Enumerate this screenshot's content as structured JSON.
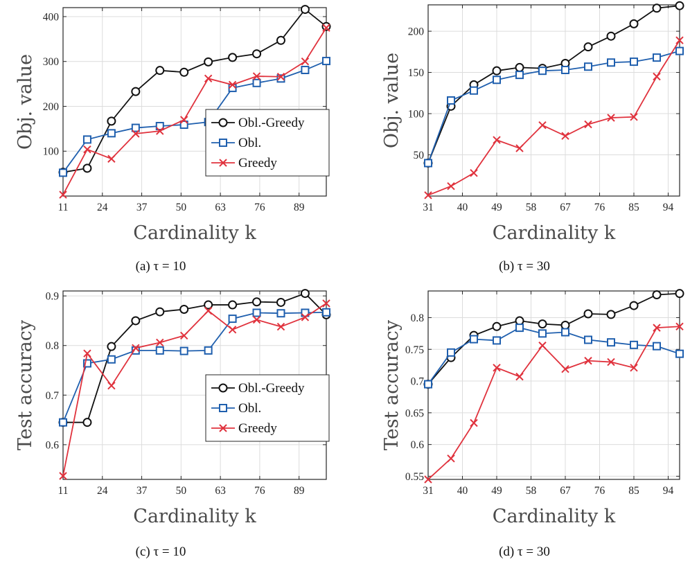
{
  "colors": {
    "obl_greedy": "#111111",
    "obl": "#1f5fae",
    "greedy": "#e0323d",
    "grid": "#dcdcdc",
    "axis": "#262626"
  },
  "chart_data": [
    {
      "type": "line",
      "panel": "a",
      "caption": "(a) τ = 10",
      "xlabel": "Cardinality k",
      "ylabel": "Obj. value",
      "x": [
        11,
        19,
        27,
        35,
        43,
        51,
        59,
        67,
        75,
        83,
        91,
        98
      ],
      "xticks": [
        11,
        24,
        37,
        50,
        63,
        76,
        89
      ],
      "xlim": [
        11,
        98
      ],
      "yticks": [
        100,
        200,
        300,
        400
      ],
      "ylim": [
        0,
        420
      ],
      "grid": true,
      "legend": "bottom-right",
      "series": [
        {
          "name": "Obl.-Greedy",
          "key": "obl_greedy",
          "marker": "circle",
          "values": [
            53,
            62,
            167,
            233,
            280,
            276,
            299,
            309,
            317,
            347,
            416,
            378
          ]
        },
        {
          "name": "Obl.",
          "key": "obl",
          "marker": "square",
          "values": [
            52,
            126,
            140,
            152,
            156,
            159,
            165,
            241,
            252,
            262,
            281,
            301
          ]
        },
        {
          "name": "Greedy",
          "key": "greedy",
          "marker": "cross",
          "values": [
            3,
            104,
            83,
            139,
            145,
            170,
            262,
            248,
            267,
            266,
            300,
            375
          ]
        }
      ]
    },
    {
      "type": "line",
      "panel": "b",
      "caption": "(b) τ = 30",
      "xlabel": "Cardinality k",
      "ylabel": "Obj. value",
      "x": [
        31,
        37,
        43,
        49,
        55,
        61,
        67,
        73,
        79,
        85,
        91,
        97
      ],
      "xticks": [
        31,
        40,
        49,
        58,
        67,
        76,
        85,
        94
      ],
      "xlim": [
        31,
        97
      ],
      "yticks": [
        50,
        100,
        150,
        200
      ],
      "ylim": [
        0,
        232
      ],
      "grid": true,
      "legend": "none",
      "series": [
        {
          "name": "Obl.-Greedy",
          "key": "obl_greedy",
          "marker": "circle",
          "values": [
            40,
            109,
            135,
            152,
            156,
            155,
            161,
            181,
            194,
            209,
            228,
            231
          ]
        },
        {
          "name": "Obl.",
          "key": "obl",
          "marker": "square",
          "values": [
            40,
            116,
            128,
            141,
            147,
            152,
            153,
            157,
            162,
            163,
            168,
            176
          ]
        },
        {
          "name": "Greedy",
          "key": "greedy",
          "marker": "cross",
          "values": [
            1,
            12,
            28,
            68,
            58,
            86,
            73,
            87,
            95,
            96,
            145,
            189
          ]
        }
      ]
    },
    {
      "type": "line",
      "panel": "c",
      "caption": "(c) τ = 10",
      "xlabel": "Cardinality k",
      "ylabel": "Test accuracy",
      "x": [
        11,
        19,
        27,
        35,
        43,
        51,
        59,
        67,
        75,
        83,
        91,
        98
      ],
      "xticks": [
        11,
        24,
        37,
        50,
        63,
        76,
        89
      ],
      "xlim": [
        11,
        98
      ],
      "yticks": [
        0.6,
        0.7,
        0.8,
        0.9
      ],
      "ylim": [
        0.53,
        0.91
      ],
      "grid": true,
      "legend": "bottom-right",
      "series": [
        {
          "name": "Obl.-Greedy",
          "key": "obl_greedy",
          "marker": "circle",
          "values": [
            0.645,
            0.645,
            0.798,
            0.85,
            0.868,
            0.873,
            0.882,
            0.882,
            0.888,
            0.887,
            0.905,
            0.862
          ]
        },
        {
          "name": "Obl.",
          "key": "obl",
          "marker": "square",
          "values": [
            0.645,
            0.764,
            0.772,
            0.79,
            0.79,
            0.789,
            0.79,
            0.854,
            0.866,
            0.865,
            0.866,
            0.867
          ]
        },
        {
          "name": "Greedy",
          "key": "greedy",
          "marker": "cross",
          "values": [
            0.537,
            0.784,
            0.719,
            0.795,
            0.806,
            0.82,
            0.87,
            0.832,
            0.852,
            0.838,
            0.857,
            0.885
          ]
        }
      ]
    },
    {
      "type": "line",
      "panel": "d",
      "caption": "(d) τ = 30",
      "xlabel": "Cardinality k",
      "ylabel": "Test accuracy",
      "x": [
        31,
        37,
        43,
        49,
        55,
        61,
        67,
        73,
        79,
        85,
        91,
        97
      ],
      "xticks": [
        31,
        40,
        49,
        58,
        67,
        76,
        85,
        94
      ],
      "xlim": [
        31,
        97
      ],
      "yticks": [
        0.55,
        0.6,
        0.65,
        0.7,
        0.75,
        0.8
      ],
      "ylim": [
        0.545,
        0.842
      ],
      "grid": true,
      "legend": "none",
      "series": [
        {
          "name": "Obl.-Greedy",
          "key": "obl_greedy",
          "marker": "circle",
          "values": [
            0.695,
            0.737,
            0.772,
            0.786,
            0.795,
            0.79,
            0.788,
            0.806,
            0.805,
            0.819,
            0.836,
            0.838
          ]
        },
        {
          "name": "Obl.",
          "key": "obl",
          "marker": "square",
          "values": [
            0.695,
            0.745,
            0.766,
            0.764,
            0.784,
            0.775,
            0.777,
            0.765,
            0.761,
            0.757,
            0.755,
            0.743
          ]
        },
        {
          "name": "Greedy",
          "key": "greedy",
          "marker": "cross",
          "values": [
            0.545,
            0.578,
            0.634,
            0.721,
            0.707,
            0.756,
            0.719,
            0.732,
            0.73,
            0.721,
            0.784,
            0.786
          ]
        }
      ]
    }
  ]
}
